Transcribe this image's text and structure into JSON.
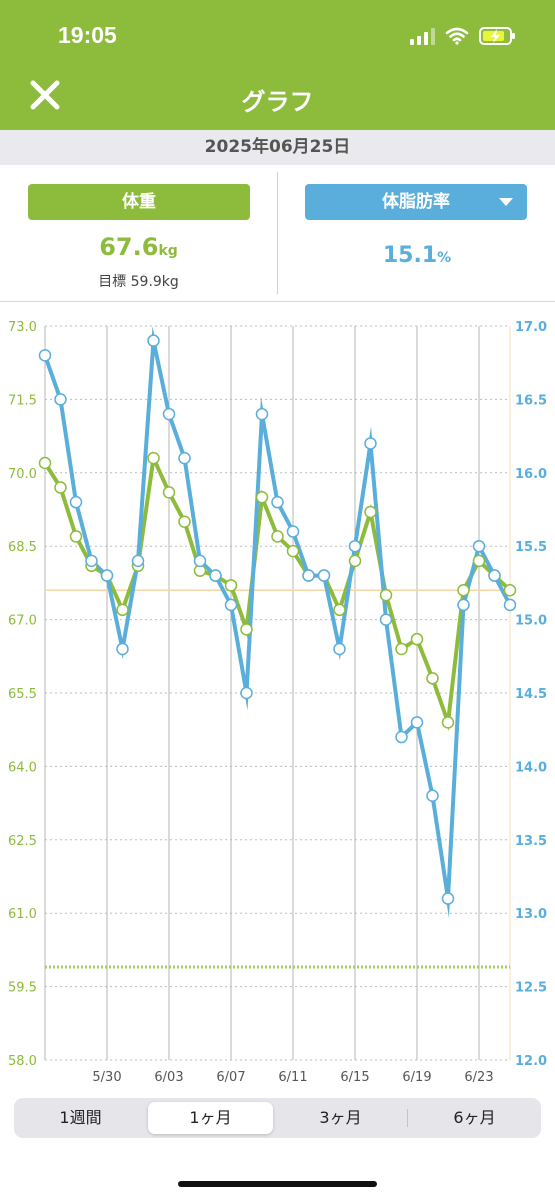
{
  "status": {
    "time": "19:05"
  },
  "header": {
    "title": "グラフ"
  },
  "date": "2025年06月25日",
  "weight": {
    "label": "体重",
    "value": "67.6",
    "unit": "kg",
    "goal": "目標 59.9kg"
  },
  "body_fat": {
    "label": "体脂肪率",
    "value": "15.1",
    "unit": "%"
  },
  "colors": {
    "weight": "#8dbb3c",
    "body_fat": "#5aaedb",
    "goal_line": "#a8c86a",
    "current_line": "#f4d6a8"
  },
  "icons": {
    "close": "close-icon",
    "dropdown": "chevron-down-icon"
  },
  "periods": [
    {
      "label": "1週間",
      "selected": false
    },
    {
      "label": "1ヶ月",
      "selected": true
    },
    {
      "label": "3ヶ月",
      "selected": false
    },
    {
      "label": "6ヶ月",
      "selected": false
    }
  ],
  "chart_data": {
    "type": "line",
    "x": [
      "5/26",
      "5/27",
      "5/28",
      "5/29",
      "5/30",
      "5/31",
      "6/01",
      "6/02",
      "6/03",
      "6/04",
      "6/05",
      "6/06",
      "6/07",
      "6/08",
      "6/09",
      "6/10",
      "6/11",
      "6/12",
      "6/13",
      "6/14",
      "6/15",
      "6/16",
      "6/17",
      "6/18",
      "6/19",
      "6/20",
      "6/21",
      "6/22",
      "6/23",
      "6/24",
      "6/25"
    ],
    "x_tick_labels": [
      "5/30",
      "6/03",
      "6/07",
      "6/11",
      "6/15",
      "6/19",
      "6/23"
    ],
    "series": [
      {
        "axis": "left",
        "color": "#8dbb3c",
        "values": [
          70.2,
          69.7,
          68.7,
          68.1,
          67.9,
          67.2,
          68.1,
          70.3,
          69.6,
          69.0,
          68.0,
          67.9,
          67.7,
          66.8,
          69.5,
          68.7,
          68.4,
          67.9,
          67.9,
          67.2,
          68.2,
          69.2,
          67.5,
          66.4,
          66.6,
          65.8,
          64.9,
          67.6,
          68.2,
          67.9,
          67.6
        ]
      },
      {
        "axis": "right",
        "color": "#5aaedb",
        "values": [
          16.8,
          16.5,
          15.8,
          15.4,
          15.3,
          14.8,
          15.4,
          16.9,
          16.4,
          16.1,
          15.4,
          15.3,
          15.1,
          14.5,
          16.4,
          15.8,
          15.6,
          15.3,
          15.3,
          14.8,
          15.5,
          16.2,
          15.0,
          14.2,
          14.3,
          13.8,
          13.1,
          15.1,
          15.5,
          15.3,
          15.1
        ]
      }
    ],
    "left_axis": {
      "ticks": [
        "73.0",
        "71.5",
        "70.0",
        "68.5",
        "67.0",
        "65.5",
        "64.0",
        "62.5",
        "61.0",
        "59.5",
        "58.0"
      ],
      "ylim": [
        58.0,
        73.0
      ]
    },
    "right_axis": {
      "ticks": [
        "17.0",
        "16.5",
        "16.0",
        "15.5",
        "15.0",
        "14.5",
        "14.0",
        "13.5",
        "13.0",
        "12.5",
        "12.0"
      ],
      "ylim": [
        12.0,
        17.0
      ]
    },
    "goal_weight": 59.9,
    "current_weight": 67.6
  }
}
